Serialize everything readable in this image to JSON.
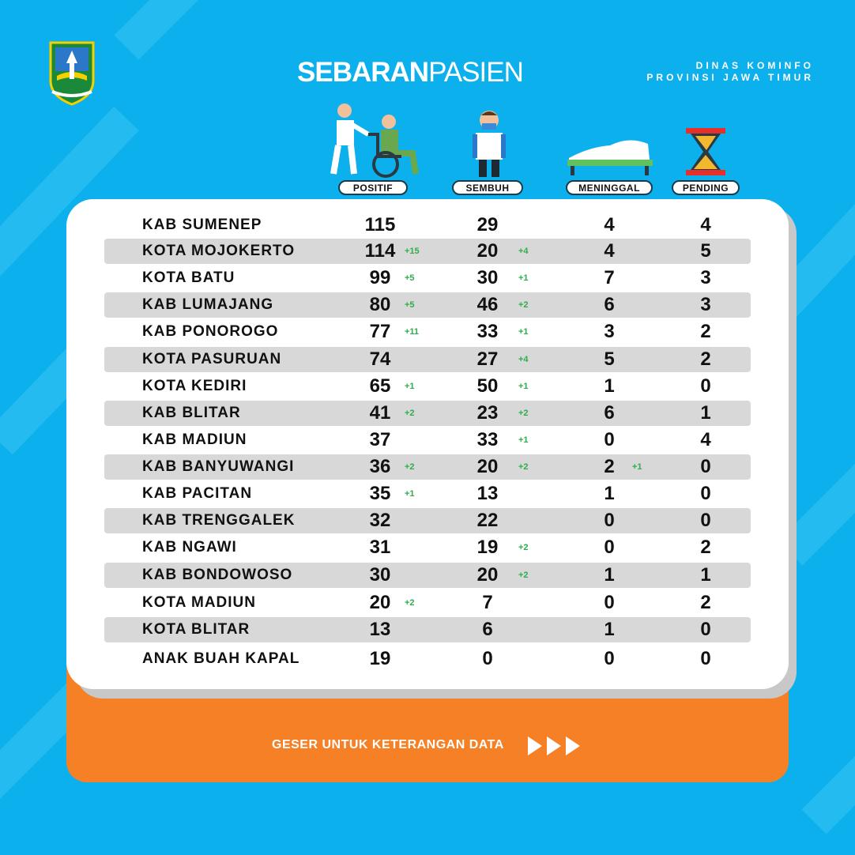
{
  "header": {
    "title_bold": "SEBARAN",
    "title_light": "PASIEN",
    "agency_line1": "DINAS KOMINFO",
    "agency_line2": "PROVINSI JAWA TIMUR"
  },
  "columns": {
    "positif": "POSITIF",
    "sembuh": "SEMBUH",
    "meninggal": "MENINGGAL",
    "pending": "PENDING"
  },
  "rows": [
    {
      "name": "KAB SUMENEP",
      "positif": "115",
      "positif_delta": "",
      "sembuh": "29",
      "sembuh_delta": "",
      "meninggal": "4",
      "meninggal_delta": "",
      "pending": "4"
    },
    {
      "name": "KOTA MOJOKERTO",
      "positif": "114",
      "positif_delta": "+15",
      "sembuh": "20",
      "sembuh_delta": "+4",
      "meninggal": "4",
      "meninggal_delta": "",
      "pending": "5"
    },
    {
      "name": "KOTA BATU",
      "positif": "99",
      "positif_delta": "+5",
      "sembuh": "30",
      "sembuh_delta": "+1",
      "meninggal": "7",
      "meninggal_delta": "",
      "pending": "3"
    },
    {
      "name": "KAB LUMAJANG",
      "positif": "80",
      "positif_delta": "+5",
      "sembuh": "46",
      "sembuh_delta": "+2",
      "meninggal": "6",
      "meninggal_delta": "",
      "pending": "3"
    },
    {
      "name": "KAB PONOROGO",
      "positif": "77",
      "positif_delta": "+11",
      "sembuh": "33",
      "sembuh_delta": "+1",
      "meninggal": "3",
      "meninggal_delta": "",
      "pending": "2"
    },
    {
      "name": "KOTA PASURUAN",
      "positif": "74",
      "positif_delta": "",
      "sembuh": "27",
      "sembuh_delta": "+4",
      "meninggal": "5",
      "meninggal_delta": "",
      "pending": "2"
    },
    {
      "name": "KOTA KEDIRI",
      "positif": "65",
      "positif_delta": "+1",
      "sembuh": "50",
      "sembuh_delta": "+1",
      "meninggal": "1",
      "meninggal_delta": "",
      "pending": "0"
    },
    {
      "name": "KAB BLITAR",
      "positif": "41",
      "positif_delta": "+2",
      "sembuh": "23",
      "sembuh_delta": "+2",
      "meninggal": "6",
      "meninggal_delta": "",
      "pending": "1"
    },
    {
      "name": "KAB MADIUN",
      "positif": "37",
      "positif_delta": "",
      "sembuh": "33",
      "sembuh_delta": "+1",
      "meninggal": "0",
      "meninggal_delta": "",
      "pending": "4"
    },
    {
      "name": "KAB BANYUWANGI",
      "positif": "36",
      "positif_delta": "+2",
      "sembuh": "20",
      "sembuh_delta": "+2",
      "meninggal": "2",
      "meninggal_delta": "+1",
      "pending": "0"
    },
    {
      "name": "KAB PACITAN",
      "positif": "35",
      "positif_delta": "+1",
      "sembuh": "13",
      "sembuh_delta": "",
      "meninggal": "1",
      "meninggal_delta": "",
      "pending": "0"
    },
    {
      "name": "KAB TRENGGALEK",
      "positif": "32",
      "positif_delta": "",
      "sembuh": "22",
      "sembuh_delta": "",
      "meninggal": "0",
      "meninggal_delta": "",
      "pending": "0"
    },
    {
      "name": "KAB NGAWI",
      "positif": "31",
      "positif_delta": "",
      "sembuh": "19",
      "sembuh_delta": "+2",
      "meninggal": "0",
      "meninggal_delta": "",
      "pending": "2"
    },
    {
      "name": "KAB BONDOWOSO",
      "positif": "30",
      "positif_delta": "",
      "sembuh": "20",
      "sembuh_delta": "+2",
      "meninggal": "1",
      "meninggal_delta": "",
      "pending": "1"
    },
    {
      "name": "KOTA MADIUN",
      "positif": "20",
      "positif_delta": "+2",
      "sembuh": "7",
      "sembuh_delta": "",
      "meninggal": "0",
      "meninggal_delta": "",
      "pending": "2"
    },
    {
      "name": "KOTA BLITAR",
      "positif": "13",
      "positif_delta": "",
      "sembuh": "6",
      "sembuh_delta": "",
      "meninggal": "1",
      "meninggal_delta": "",
      "pending": "0"
    },
    {
      "name": "ANAK BUAH KAPAL",
      "positif": "19",
      "positif_delta": "",
      "sembuh": "0",
      "sembuh_delta": "",
      "meninggal": "0",
      "meninggal_delta": "",
      "pending": "0"
    }
  ],
  "footer": {
    "label": "GESER UNTUK KETERANGAN DATA"
  },
  "icons": {
    "logo": "province-emblem-icon",
    "positif": "wheelchair-patient-icon",
    "sembuh": "recovered-person-icon",
    "meninggal": "covered-bed-icon",
    "pending": "hourglass-icon",
    "next": "triple-arrow-icon"
  },
  "colors": {
    "background": "#0cb0ec",
    "card": "#ffffff",
    "row_shade": "#d8d8d8",
    "delta": "#2eae4a",
    "orange": "#f58025"
  }
}
